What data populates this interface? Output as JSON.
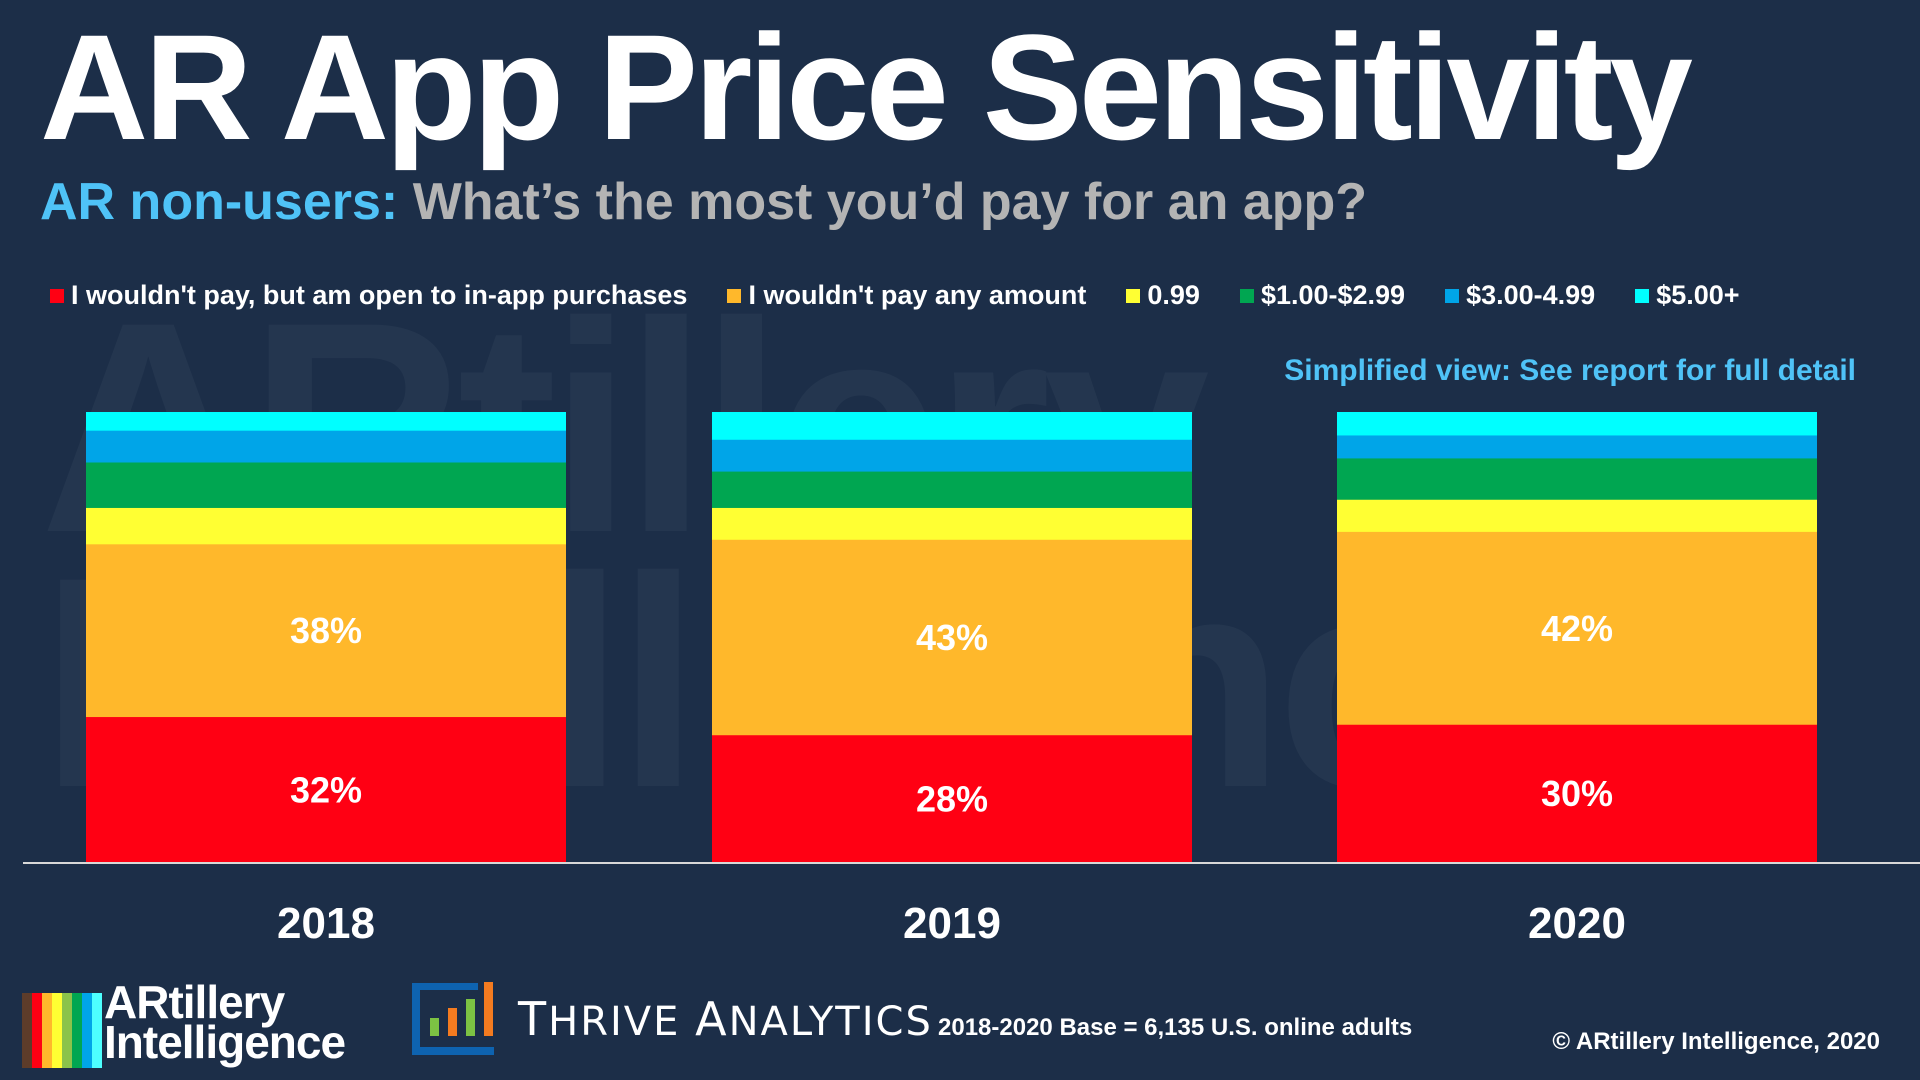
{
  "title": "AR App Price Sensitivity",
  "subtitle": {
    "lead": "AR non-users:",
    "question": "What’s the most you’d pay for an app?"
  },
  "note": "Simplified view: See report for full detail",
  "watermark": "ARtillery\nIntelligence",
  "footer": {
    "base": "2018-2020 Base = 6,135 U.S. online adults",
    "copyright": "© ARtillery Intelligence, 2020"
  },
  "logos": {
    "artillery": {
      "line1": "ARtillery",
      "line2": "Intelligence",
      "stripe_colors": [
        "#5d3c2a",
        "#ff0013",
        "#ffb82b",
        "#ffff33",
        "#8bc34a",
        "#00a651",
        "#00a5e8",
        "#4dffff"
      ]
    },
    "thrive": {
      "text_t": "T",
      "text_hrive": "HRIVE",
      "text_a": "A",
      "text_nalytics": "NALYTICS",
      "icon": "bar-chart-icon"
    }
  },
  "colors": {
    "background": "#1c2e48",
    "accent": "#4fc3f7"
  },
  "chart_data": {
    "type": "bar",
    "stacked": true,
    "title": "AR App Price Sensitivity",
    "subtitle": "AR non-users: What’s the most you’d pay for an app?",
    "xlabel": "",
    "ylabel": "",
    "ylim": [
      0,
      100
    ],
    "grid": false,
    "legend_position": "top",
    "categories": [
      "2018",
      "2019",
      "2020"
    ],
    "series": [
      {
        "name": "I wouldn't pay, but am open to in-app purchases",
        "color": "#ff0013",
        "values": [
          32,
          28,
          30
        ],
        "labeled": true
      },
      {
        "name": "I wouldn't pay any amount",
        "color": "#ffb82b",
        "values": [
          38,
          43,
          42
        ],
        "labeled": true
      },
      {
        "name": "0.99",
        "color": "#ffff33",
        "values": [
          8,
          7,
          7
        ],
        "labeled": false
      },
      {
        "name": "$1.00-$2.99",
        "color": "#00a651",
        "values": [
          10,
          8,
          9
        ],
        "labeled": false
      },
      {
        "name": "$3.00-4.99",
        "color": "#00a5e8",
        "values": [
          7,
          7,
          5
        ],
        "labeled": false
      },
      {
        "name": "$5.00+",
        "color": "#00ffff",
        "values": [
          4,
          6,
          5
        ],
        "labeled": false
      }
    ],
    "data_labels": [
      [
        "32%",
        "28%",
        "30%"
      ],
      [
        "38%",
        "43%",
        "42%"
      ]
    ]
  }
}
